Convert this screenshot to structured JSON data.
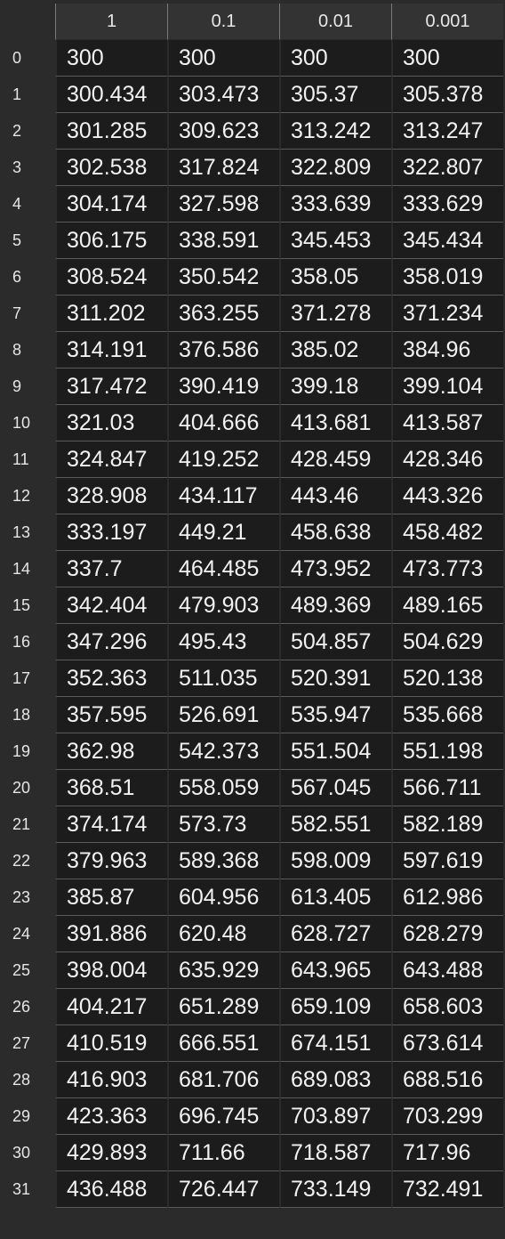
{
  "table": {
    "columns": [
      "",
      "1",
      "0.1",
      "0.01",
      "0.001"
    ],
    "rows": [
      {
        "index": "0",
        "values": [
          "300",
          "300",
          "300",
          "300"
        ]
      },
      {
        "index": "1",
        "values": [
          "300.434",
          "303.473",
          "305.37",
          "305.378"
        ]
      },
      {
        "index": "2",
        "values": [
          "301.285",
          "309.623",
          "313.242",
          "313.247"
        ]
      },
      {
        "index": "3",
        "values": [
          "302.538",
          "317.824",
          "322.809",
          "322.807"
        ]
      },
      {
        "index": "4",
        "values": [
          "304.174",
          "327.598",
          "333.639",
          "333.629"
        ]
      },
      {
        "index": "5",
        "values": [
          "306.175",
          "338.591",
          "345.453",
          "345.434"
        ]
      },
      {
        "index": "6",
        "values": [
          "308.524",
          "350.542",
          "358.05",
          "358.019"
        ]
      },
      {
        "index": "7",
        "values": [
          "311.202",
          "363.255",
          "371.278",
          "371.234"
        ]
      },
      {
        "index": "8",
        "values": [
          "314.191",
          "376.586",
          "385.02",
          "384.96"
        ]
      },
      {
        "index": "9",
        "values": [
          "317.472",
          "390.419",
          "399.18",
          "399.104"
        ]
      },
      {
        "index": "10",
        "values": [
          "321.03",
          "404.666",
          "413.681",
          "413.587"
        ]
      },
      {
        "index": "11",
        "values": [
          "324.847",
          "419.252",
          "428.459",
          "428.346"
        ]
      },
      {
        "index": "12",
        "values": [
          "328.908",
          "434.117",
          "443.46",
          "443.326"
        ]
      },
      {
        "index": "13",
        "values": [
          "333.197",
          "449.21",
          "458.638",
          "458.482"
        ]
      },
      {
        "index": "14",
        "values": [
          "337.7",
          "464.485",
          "473.952",
          "473.773"
        ]
      },
      {
        "index": "15",
        "values": [
          "342.404",
          "479.903",
          "489.369",
          "489.165"
        ]
      },
      {
        "index": "16",
        "values": [
          "347.296",
          "495.43",
          "504.857",
          "504.629"
        ]
      },
      {
        "index": "17",
        "values": [
          "352.363",
          "511.035",
          "520.391",
          "520.138"
        ]
      },
      {
        "index": "18",
        "values": [
          "357.595",
          "526.691",
          "535.947",
          "535.668"
        ]
      },
      {
        "index": "19",
        "values": [
          "362.98",
          "542.373",
          "551.504",
          "551.198"
        ]
      },
      {
        "index": "20",
        "values": [
          "368.51",
          "558.059",
          "567.045",
          "566.711"
        ]
      },
      {
        "index": "21",
        "values": [
          "374.174",
          "573.73",
          "582.551",
          "582.189"
        ]
      },
      {
        "index": "22",
        "values": [
          "379.963",
          "589.368",
          "598.009",
          "597.619"
        ]
      },
      {
        "index": "23",
        "values": [
          "385.87",
          "604.956",
          "613.405",
          "612.986"
        ]
      },
      {
        "index": "24",
        "values": [
          "391.886",
          "620.48",
          "628.727",
          "628.279"
        ]
      },
      {
        "index": "25",
        "values": [
          "398.004",
          "635.929",
          "643.965",
          "643.488"
        ]
      },
      {
        "index": "26",
        "values": [
          "404.217",
          "651.289",
          "659.109",
          "658.603"
        ]
      },
      {
        "index": "27",
        "values": [
          "410.519",
          "666.551",
          "674.151",
          "673.614"
        ]
      },
      {
        "index": "28",
        "values": [
          "416.903",
          "681.706",
          "689.083",
          "688.516"
        ]
      },
      {
        "index": "29",
        "values": [
          "423.363",
          "696.745",
          "703.897",
          "703.299"
        ]
      },
      {
        "index": "30",
        "values": [
          "429.893",
          "711.66",
          "718.587",
          "717.96"
        ]
      },
      {
        "index": "31",
        "values": [
          "436.488",
          "726.447",
          "733.149",
          "732.491"
        ]
      }
    ]
  },
  "colors": {
    "background": "#2b2b2b",
    "header_background": "#333333",
    "cell_background": "#1c1c1c",
    "text": "#f2f2f2"
  }
}
